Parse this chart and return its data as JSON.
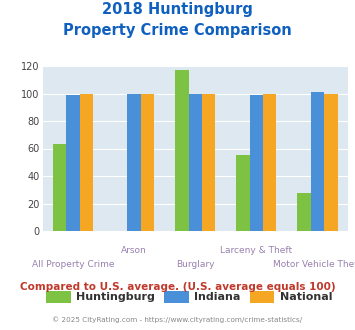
{
  "title_line1": "2018 Huntingburg",
  "title_line2": "Property Crime Comparison",
  "series": {
    "Huntingburg": [
      63,
      0,
      117,
      55,
      28
    ],
    "Indiana": [
      99,
      100,
      100,
      99,
      101
    ],
    "National": [
      100,
      100,
      100,
      100,
      100
    ]
  },
  "colors": {
    "Huntingburg": "#7dc242",
    "Indiana": "#4a90d9",
    "National": "#f5a623"
  },
  "top_labels": [
    "",
    "Arson",
    "",
    "Larceny & Theft",
    ""
  ],
  "bottom_labels": [
    "All Property Crime",
    "",
    "Burglary",
    "",
    "Motor Vehicle Theft"
  ],
  "ylim": [
    0,
    120
  ],
  "yticks": [
    0,
    20,
    40,
    60,
    80,
    100,
    120
  ],
  "plot_bg": "#dde8f0",
  "title_color": "#1060c0",
  "xlabel_color": "#9980b0",
  "footer_text": "Compared to U.S. average. (U.S. average equals 100)",
  "footer_color": "#c0392b",
  "copyright_text": "© 2025 CityRating.com - https://www.cityrating.com/crime-statistics/",
  "copyright_color": "#888888",
  "bar_width": 0.22
}
